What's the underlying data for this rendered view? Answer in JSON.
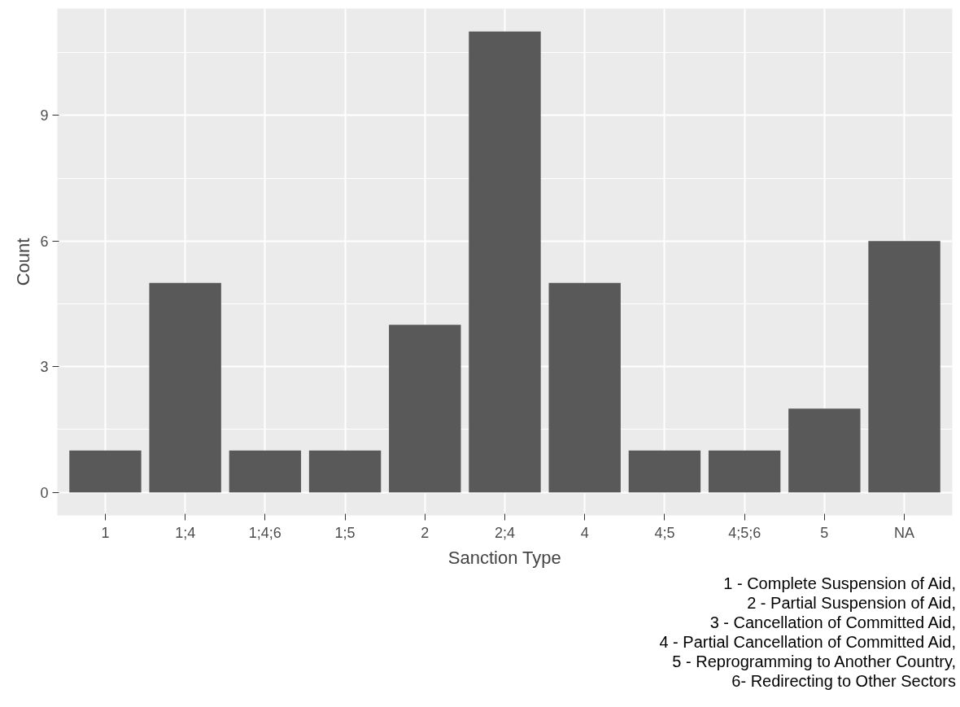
{
  "chart_data": {
    "type": "bar",
    "xlabel": "Sanction Type",
    "ylabel": "Count",
    "categories": [
      "1",
      "1;4",
      "1;4;6",
      "1;5",
      "2",
      "2;4",
      "4",
      "4;5",
      "4;5;6",
      "5",
      "NA"
    ],
    "values": [
      1,
      5,
      1,
      1,
      4,
      11,
      5,
      1,
      1,
      2,
      6
    ],
    "color": "#595959",
    "ylim": [
      -0.55,
      11.55
    ],
    "yticks": [
      0,
      3,
      6,
      9
    ],
    "grid": true,
    "annotations": [
      "1 - Complete Suspension of Aid,",
      "2 - Partial Suspension of Aid,",
      "3 - Cancellation of Committed Aid,",
      "4 - Partial Cancellation of Committed Aid,",
      "5 - Reprogramming to Another Country,",
      "6- Redirecting to Other Sectors"
    ]
  }
}
